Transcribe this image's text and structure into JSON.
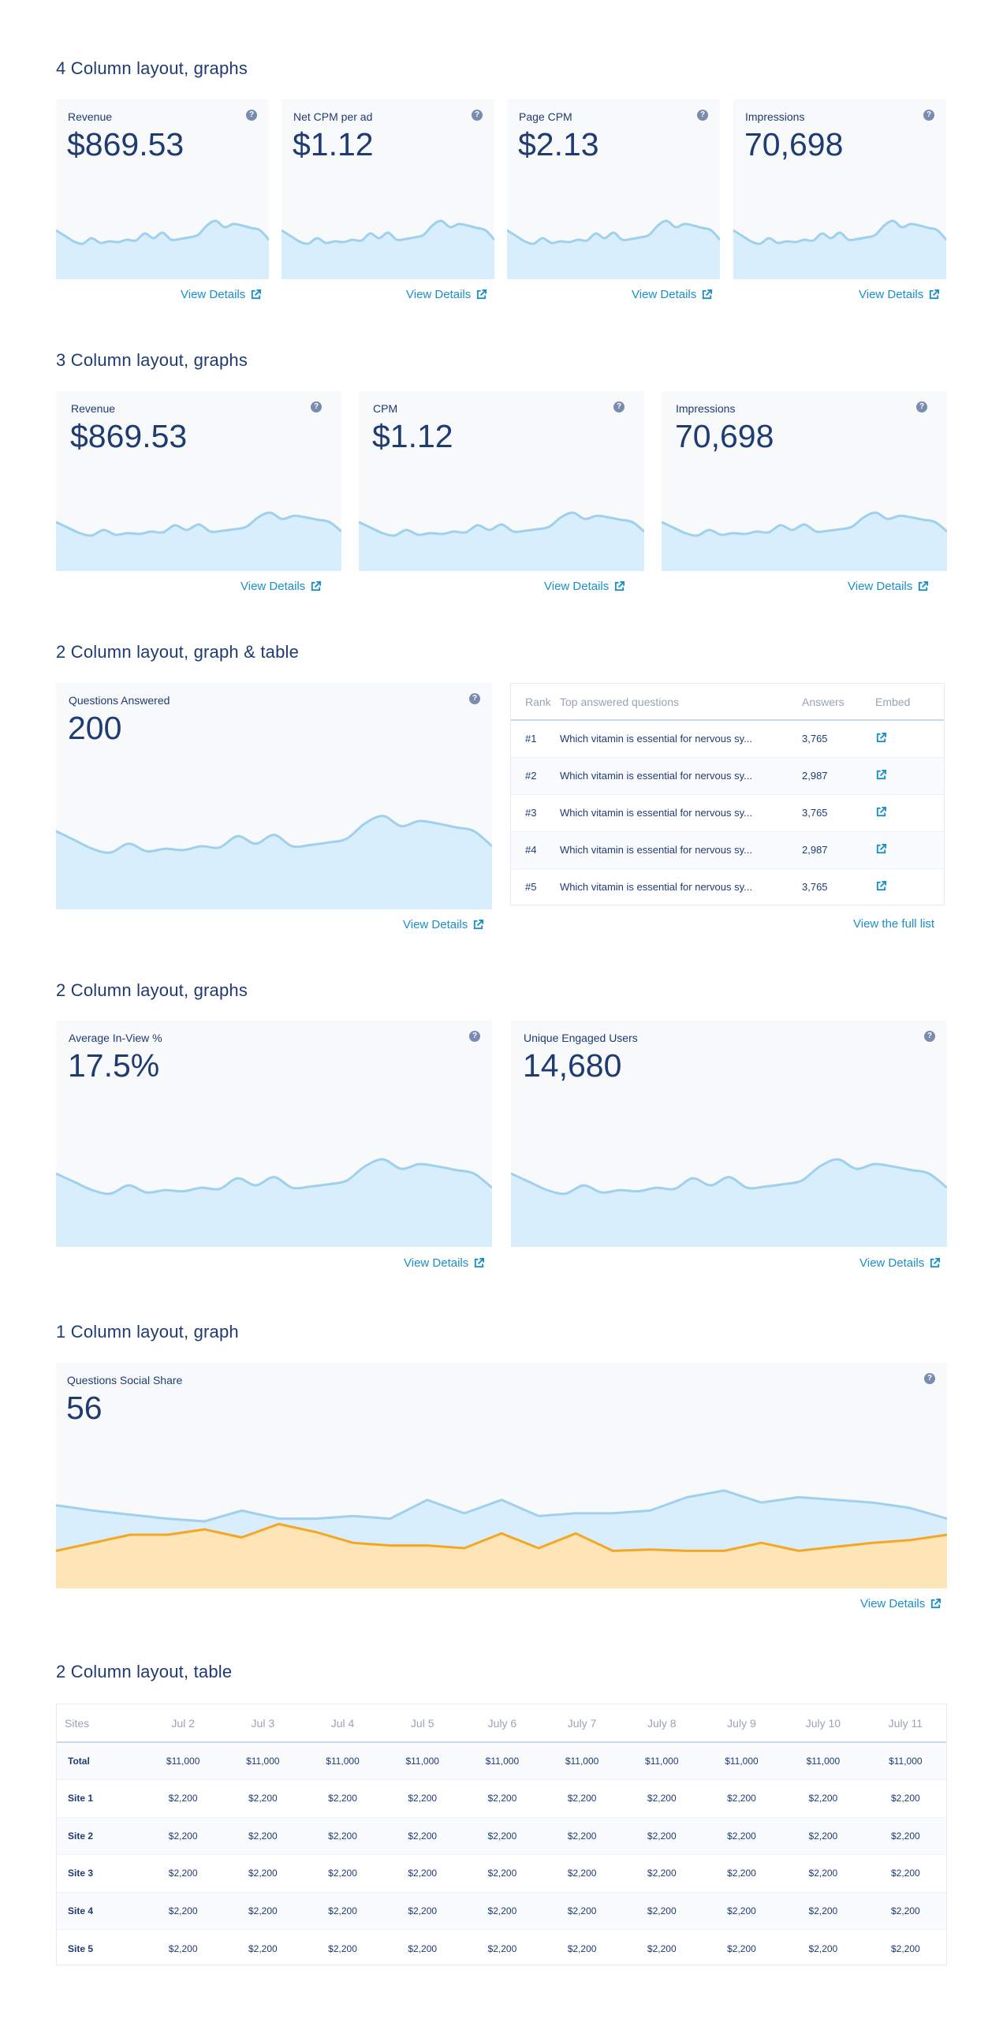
{
  "view_details": "View Details",
  "colors": {
    "accent": "#1b8fc8",
    "area_blue": "#d9eefc",
    "line_blue": "#9fd0ec",
    "area_orange": "#fde5b7",
    "line_orange": "#f5a623",
    "title": "#1f3b73"
  },
  "sections": {
    "s1": {
      "title": "4 Column layout, graphs",
      "cards": [
        {
          "label": "Revenue",
          "value": "$869.53"
        },
        {
          "label": "Net CPM per ad",
          "value": "$1.12"
        },
        {
          "label": "Page CPM",
          "value": "$2.13"
        },
        {
          "label": "Impressions",
          "value": "70,698"
        }
      ]
    },
    "s2": {
      "title": "3 Column layout, graphs",
      "cards": [
        {
          "label": "Revenue",
          "value": "$869.53"
        },
        {
          "label": "CPM",
          "value": "$1.12"
        },
        {
          "label": "Impressions",
          "value": "70,698"
        }
      ]
    },
    "s3": {
      "title": "2 Column layout, graph & table",
      "card": {
        "label": "Questions Answered",
        "value": "200"
      },
      "table": {
        "headers": {
          "rank": "Rank",
          "question": "Top answered questions",
          "answers": "Answers",
          "embed": "Embed"
        },
        "rows": [
          {
            "rank": "#1",
            "question": "Which vitamin is essential for nervous sy...",
            "answers": "3,765"
          },
          {
            "rank": "#2",
            "question": "Which vitamin is essential for nervous sy...",
            "answers": "2,987"
          },
          {
            "rank": "#3",
            "question": "Which vitamin is essential for nervous sy...",
            "answers": "3,765"
          },
          {
            "rank": "#4",
            "question": "Which vitamin is essential for nervous sy...",
            "answers": "2,987"
          },
          {
            "rank": "#5",
            "question": "Which vitamin is essential for nervous sy...",
            "answers": "3,765"
          }
        ],
        "full_list": "View the full list"
      }
    },
    "s4": {
      "title": "2 Column layout, graphs",
      "cards": [
        {
          "label": "Average In-View %",
          "value": "17.5%"
        },
        {
          "label": "Unique Engaged Users",
          "value": "14,680"
        }
      ]
    },
    "s5": {
      "title": "1 Column layout, graph",
      "card": {
        "label": "Questions Social Share",
        "value": "56"
      }
    },
    "s6": {
      "title": "2 Column layout, table",
      "headers": [
        "Sites",
        "Jul 2",
        "Jul 3",
        "Jul 4",
        "Jul 5",
        "July 6",
        "July 7",
        "July 8",
        "July 9",
        "July 10",
        "July 11"
      ],
      "rows": [
        {
          "name": "Total",
          "values": [
            "$11,000",
            "$11,000",
            "$11,000",
            "$11,000",
            "$11,000",
            "$11,000",
            "$11,000",
            "$11,000",
            "$11,000",
            "$11,000"
          ]
        },
        {
          "name": "Site 1",
          "values": [
            "$2,200",
            "$2,200",
            "$2,200",
            "$2,200",
            "$2,200",
            "$2,200",
            "$2,200",
            "$2,200",
            "$2,200",
            "$2,200"
          ]
        },
        {
          "name": "Site 2",
          "values": [
            "$2,200",
            "$2,200",
            "$2,200",
            "$2,200",
            "$2,200",
            "$2,200",
            "$2,200",
            "$2,200",
            "$2,200",
            "$2,200"
          ]
        },
        {
          "name": "Site 3",
          "values": [
            "$2,200",
            "$2,200",
            "$2,200",
            "$2,200",
            "$2,200",
            "$2,200",
            "$2,200",
            "$2,200",
            "$2,200",
            "$2,200"
          ]
        },
        {
          "name": "Site 4",
          "values": [
            "$2,200",
            "$2,200",
            "$2,200",
            "$2,200",
            "$2,200",
            "$2,200",
            "$2,200",
            "$2,200",
            "$2,200",
            "$2,200"
          ]
        },
        {
          "name": "Site 5",
          "values": [
            "$2,200",
            "$2,200",
            "$2,200",
            "$2,200",
            "$2,200",
            "$2,200",
            "$2,200",
            "$2,200",
            "$2,200",
            "$2,200"
          ]
        }
      ]
    }
  },
  "chart_data": {
    "type": "area",
    "sparkline": [
      0.62,
      0.55,
      0.48,
      0.45,
      0.52,
      0.46,
      0.48,
      0.47,
      0.5,
      0.49,
      0.58,
      0.52,
      0.59,
      0.5,
      0.51,
      0.53,
      0.56,
      0.68,
      0.74,
      0.66,
      0.7,
      0.68,
      0.65,
      0.62,
      0.5
    ],
    "social_share": {
      "series": [
        {
          "values": [
            0.62,
            0.58,
            0.55,
            0.52,
            0.5,
            0.58,
            0.52,
            0.52,
            0.54,
            0.52,
            0.66,
            0.56,
            0.66,
            0.54,
            0.56,
            0.56,
            0.58,
            0.68,
            0.73,
            0.64,
            0.68,
            0.66,
            0.64,
            0.6,
            0.52
          ]
        },
        {
          "values": [
            0.28,
            0.34,
            0.4,
            0.4,
            0.44,
            0.38,
            0.48,
            0.42,
            0.34,
            0.32,
            0.32,
            0.3,
            0.41,
            0.3,
            0.41,
            0.28,
            0.29,
            0.28,
            0.28,
            0.34,
            0.28,
            0.31,
            0.34,
            0.36,
            0.4
          ]
        }
      ]
    }
  }
}
